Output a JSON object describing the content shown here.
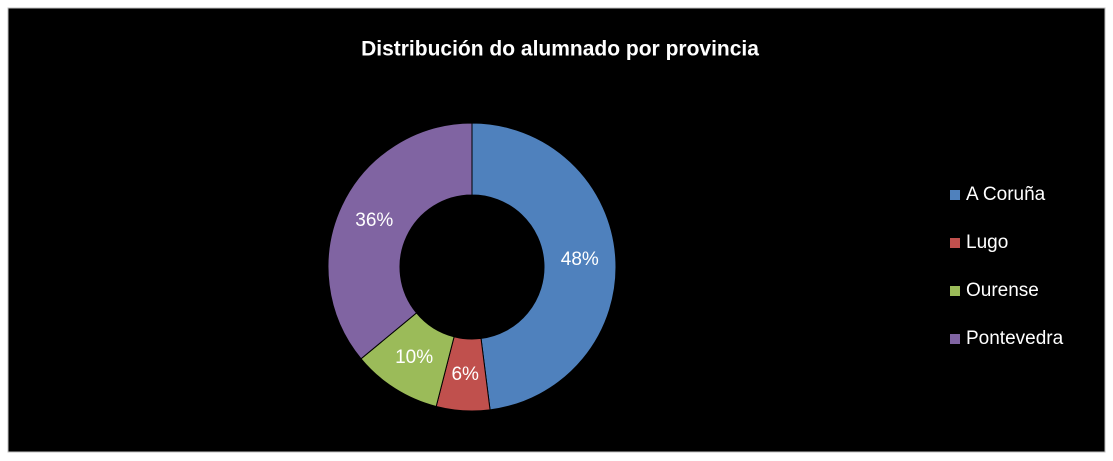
{
  "chart_data": {
    "type": "donut",
    "title": "Distribución do alumnado por provincia",
    "categories": [
      "A Coruña",
      "Lugo",
      "Ourense",
      "Pontevedra"
    ],
    "values": [
      48,
      6,
      10,
      36
    ],
    "value_labels": [
      "48%",
      "6%",
      "10%",
      "36%"
    ],
    "colors": [
      "#4f81bd",
      "#c0504d",
      "#9bbb59",
      "#8064a2"
    ],
    "legend": "right"
  }
}
